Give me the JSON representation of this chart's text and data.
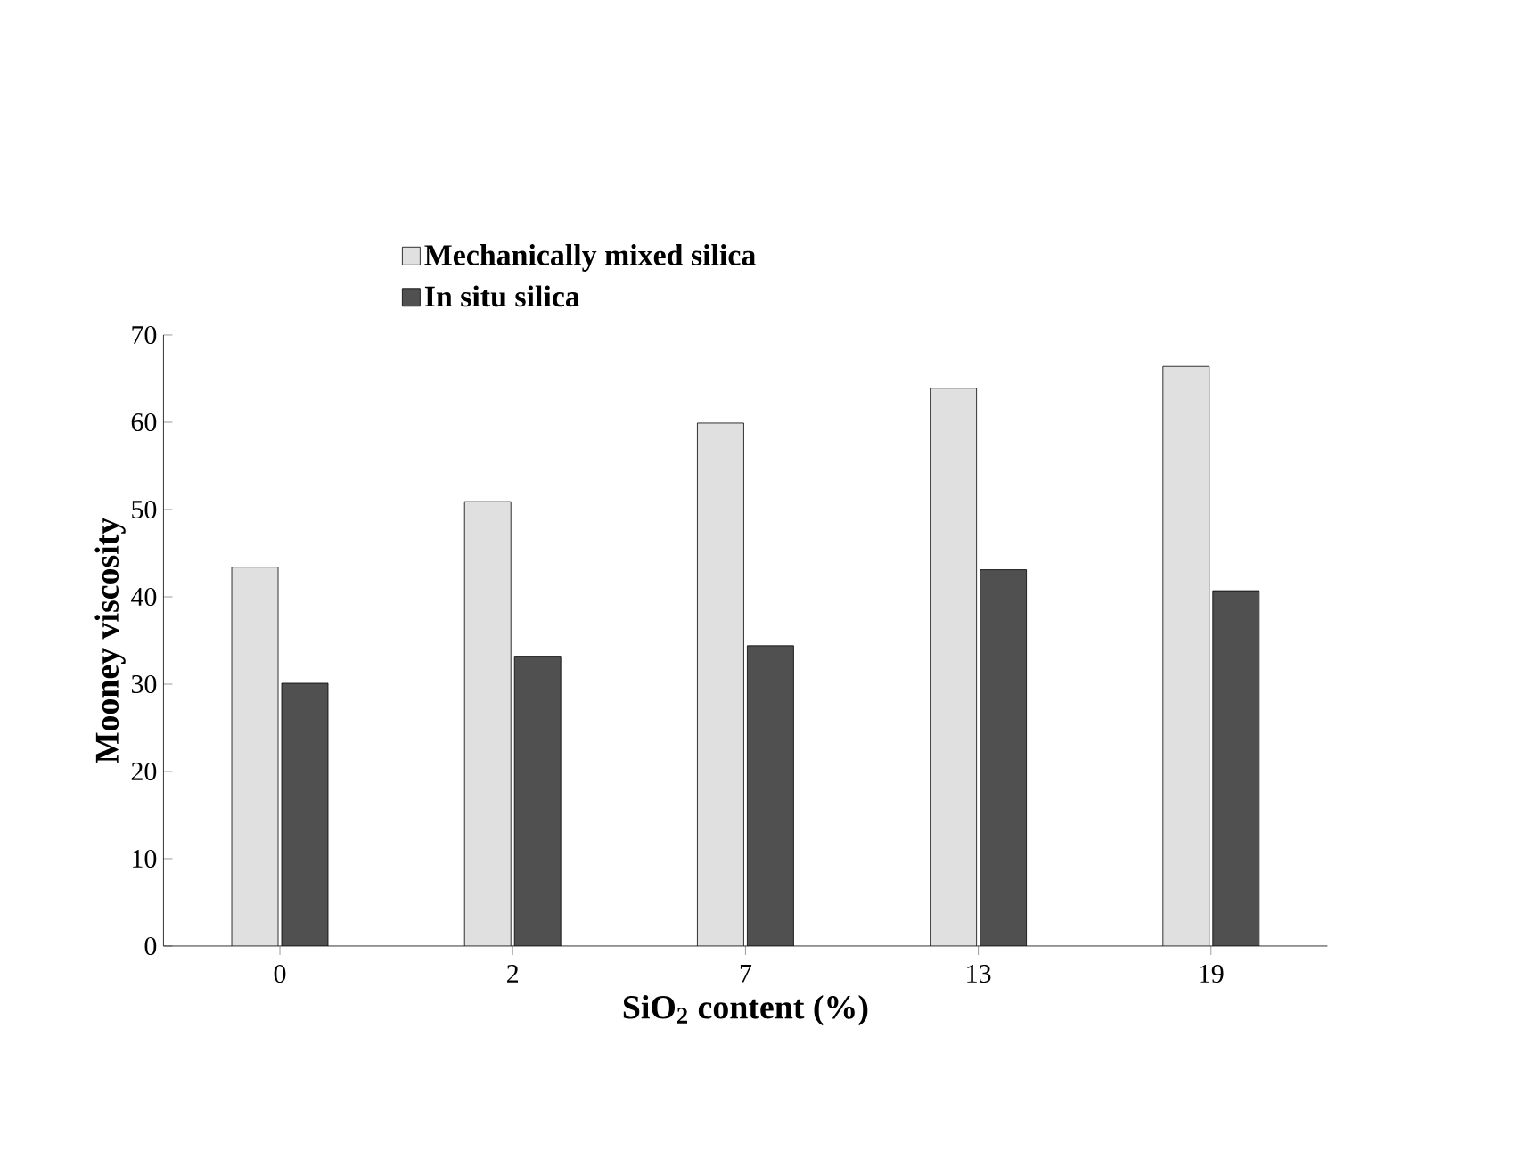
{
  "chart_data": {
    "type": "bar",
    "xlabel": "SiO$_{2}$ content (%)",
    "ylabel": "Mooney viscosity",
    "categories": [
      "0",
      "2",
      "7",
      "13",
      "19"
    ],
    "series": [
      {
        "name": "Mechanically mixed silica",
        "color": "#e0e0e0",
        "values": [
          43.4,
          50.9,
          59.9,
          63.9,
          66.4
        ]
      },
      {
        "name": "In situ silica",
        "color": "#505050",
        "values": [
          30.1,
          33.2,
          34.4,
          43.1,
          40.7
        ]
      }
    ],
    "ylim": [
      0,
      70
    ],
    "yticks": [
      0,
      10,
      20,
      30,
      40,
      50,
      60,
      70
    ],
    "legend": "top left",
    "grid": false
  }
}
